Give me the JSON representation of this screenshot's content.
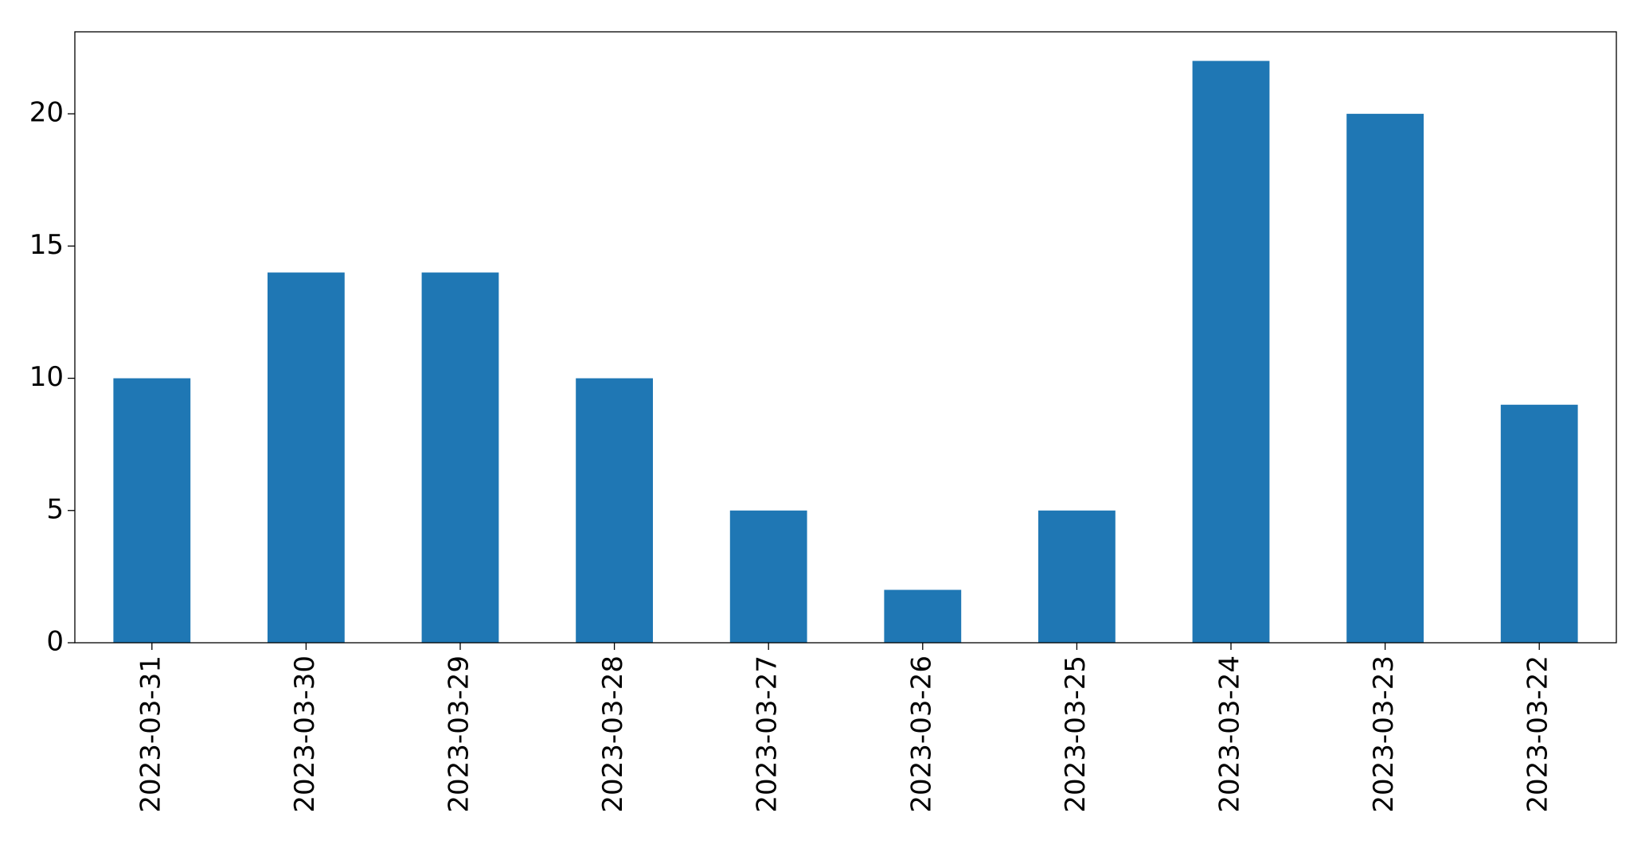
{
  "chart_data": {
    "type": "bar",
    "categories": [
      "2023-03-31",
      "2023-03-30",
      "2023-03-29",
      "2023-03-28",
      "2023-03-27",
      "2023-03-26",
      "2023-03-25",
      "2023-03-24",
      "2023-03-23",
      "2023-03-22"
    ],
    "values": [
      10,
      14,
      14,
      10,
      5,
      2,
      5,
      22,
      20,
      9
    ],
    "color": "#1f77b4",
    "ylim": [
      0,
      23.1
    ],
    "yticks": [
      0,
      5,
      10,
      15,
      20
    ],
    "grid": false
  }
}
